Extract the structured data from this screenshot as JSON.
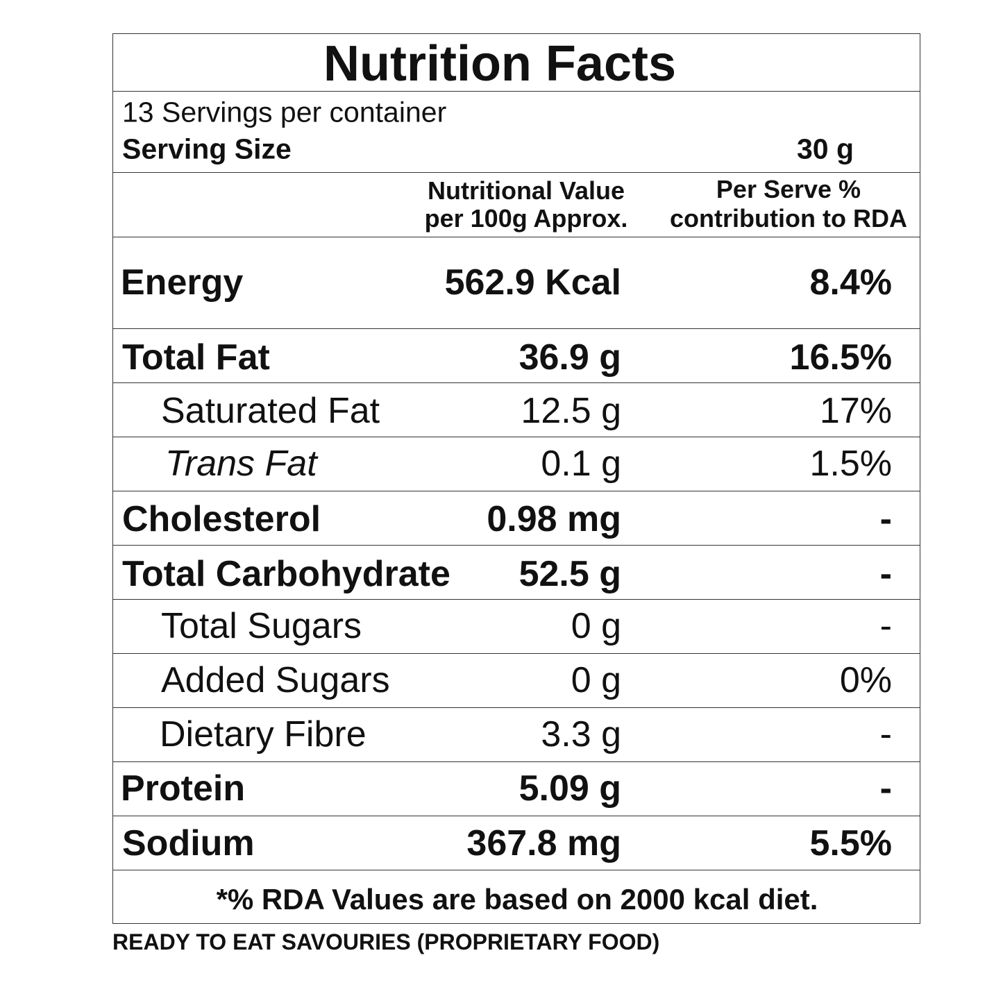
{
  "title": "Nutrition Facts",
  "servings": "13 Servings per container",
  "serving_size": {
    "label": "Serving Size",
    "value": "30 g"
  },
  "column_headers": [
    [
      "Nutritional Value",
      "per 100g Approx."
    ],
    [
      "Per Serve %",
      "contribution to RDA"
    ]
  ],
  "rows": [
    {
      "name": "Energy",
      "amount": "562.9 Kcal",
      "rda": "8.4%"
    },
    {
      "name": "Total Fat",
      "amount": "36.9 g",
      "rda": "16.5%"
    },
    {
      "name": "Saturated Fat",
      "amount": "12.5 g",
      "rda": "17%"
    },
    {
      "name": "Trans Fat",
      "amount": "0.1 g",
      "rda": "1.5%"
    },
    {
      "name": "Cholesterol",
      "amount": "0.98 mg",
      "rda": "-"
    },
    {
      "name": "Total Carbohydrate",
      "amount": "52.5 g",
      "rda": "-"
    },
    {
      "name": "Total Sugars",
      "amount": "0 g",
      "rda": "-"
    },
    {
      "name": "Added Sugars",
      "amount": "0 g",
      "rda": "0%"
    },
    {
      "name": "Dietary Fibre",
      "amount": "3.3 g",
      "rda": "-"
    },
    {
      "name": "Protein",
      "amount": "5.09 g",
      "rda": "-"
    },
    {
      "name": "Sodium",
      "amount": "367.8 mg",
      "rda": "5.5%"
    }
  ],
  "footnote": "*% RDA Values are based on 2000 kcal diet.",
  "product_category": "READY TO EAT SAVOURIES (PROPRIETARY FOOD)"
}
